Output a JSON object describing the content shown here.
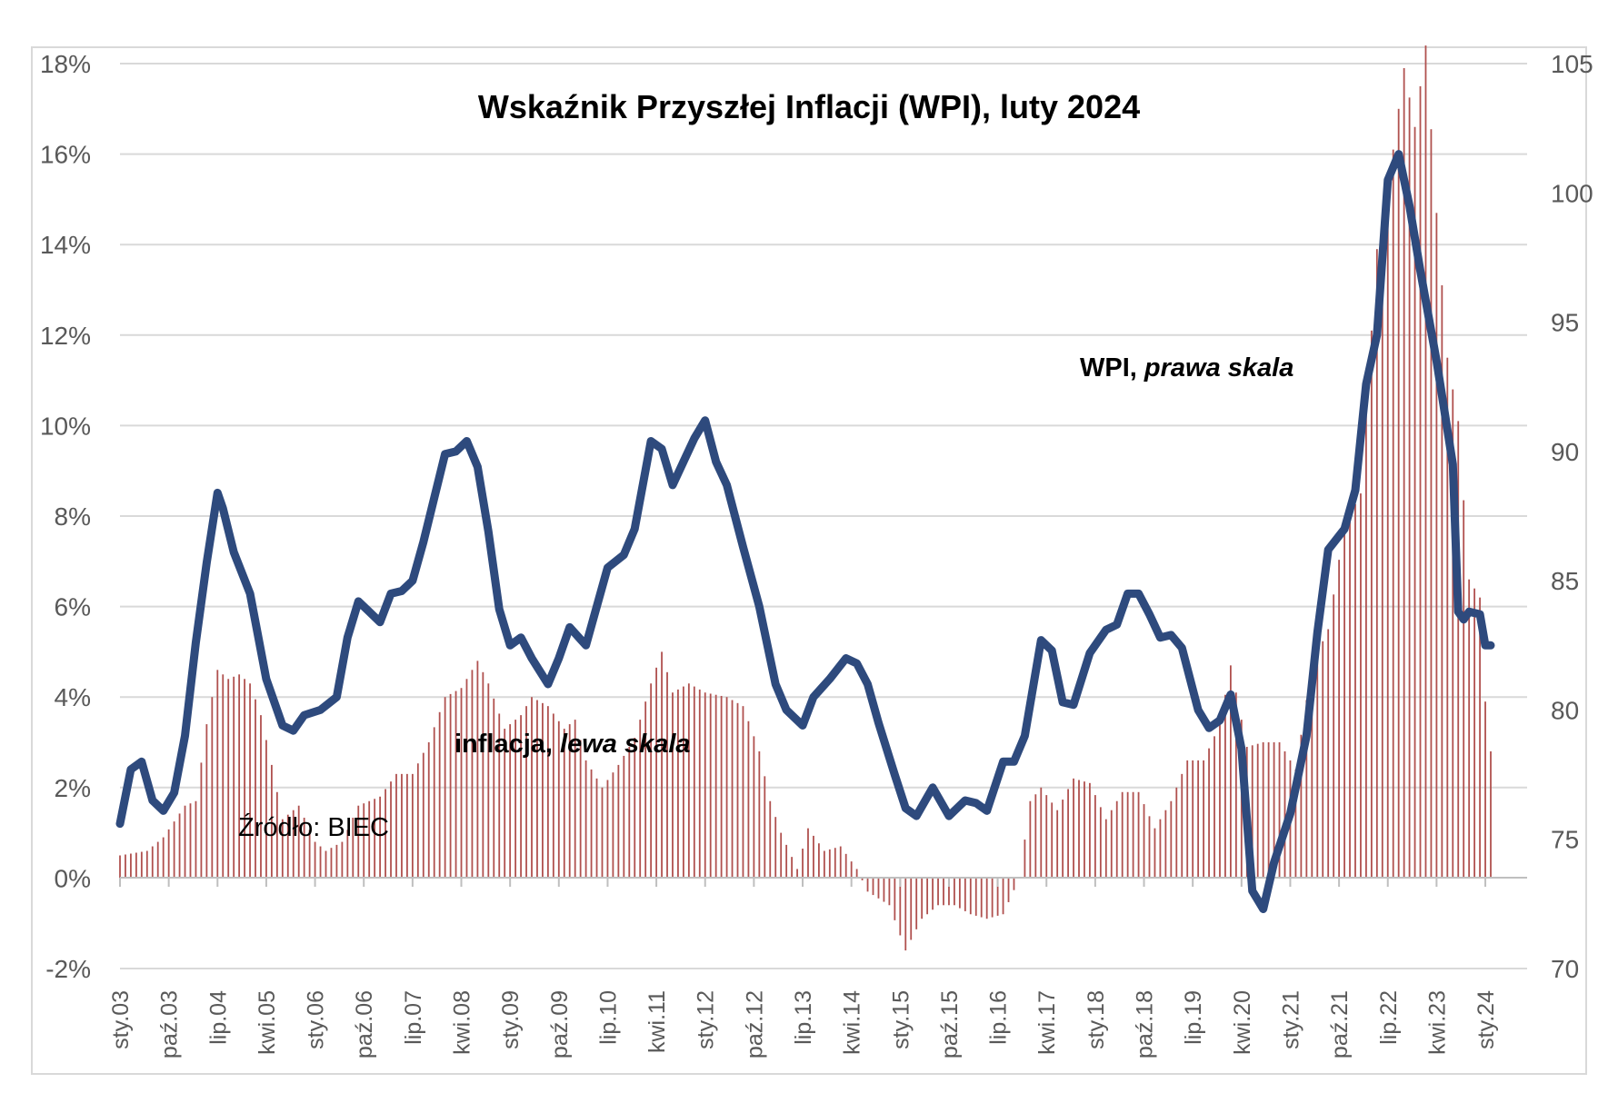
{
  "chart_data": {
    "type": "bar+line",
    "title": "Wskaźnik Przyszłej Inflacji (WPI), luty 2024",
    "annotations": {
      "wpi_label": "WPI, ",
      "wpi_label_italic": "prawa skala",
      "inflation_label": "inflacja, ",
      "inflation_label_italic": "lewa skala",
      "source": "Źródło: BIEC"
    },
    "left_axis": {
      "ticks": [
        "18%",
        "16%",
        "14%",
        "12%",
        "10%",
        "8%",
        "6%",
        "4%",
        "2%",
        "0%",
        "-2%"
      ],
      "range": [
        -2,
        18
      ]
    },
    "right_axis": {
      "ticks": [
        "105",
        "100",
        "95",
        "90",
        "85",
        "80",
        "75",
        "70"
      ],
      "range": [
        70,
        105
      ]
    },
    "x_ticks": [
      "sty.03",
      "paź.03",
      "lip.04",
      "kwi.05",
      "sty.06",
      "paź.06",
      "lip.07",
      "kwi.08",
      "sty.09",
      "paź.09",
      "lip.10",
      "kwi.11",
      "sty.12",
      "paź.12",
      "lip.13",
      "kwi.14",
      "sty.15",
      "paź.15",
      "lip.16",
      "kwi.17",
      "sty.18",
      "paź.18",
      "lip.19",
      "kwi.20",
      "sty.21",
      "paź.21",
      "lip.22",
      "kwi.23",
      "sty.24"
    ],
    "x_range": [
      "2003-01",
      "2024-02"
    ],
    "series": [
      {
        "name": "inflacja",
        "axis": "left",
        "kind": "bar",
        "color": "#b0514f",
        "anchors": [
          [
            "2003-01",
            0.5
          ],
          [
            "2003-06",
            0.6
          ],
          [
            "2003-09",
            0.9
          ],
          [
            "2004-01",
            1.6
          ],
          [
            "2004-03",
            1.7
          ],
          [
            "2004-05",
            3.4
          ],
          [
            "2004-07",
            4.6
          ],
          [
            "2004-09",
            4.4
          ],
          [
            "2004-11",
            4.5
          ],
          [
            "2005-01",
            4.3
          ],
          [
            "2005-03",
            3.6
          ],
          [
            "2005-05",
            2.5
          ],
          [
            "2005-07",
            1.3
          ],
          [
            "2005-10",
            1.6
          ],
          [
            "2006-01",
            0.8
          ],
          [
            "2006-03",
            0.6
          ],
          [
            "2006-06",
            0.8
          ],
          [
            "2006-09",
            1.6
          ],
          [
            "2007-01",
            1.8
          ],
          [
            "2007-04",
            2.3
          ],
          [
            "2007-07",
            2.3
          ],
          [
            "2007-10",
            3.0
          ],
          [
            "2008-01",
            4.0
          ],
          [
            "2008-04",
            4.2
          ],
          [
            "2008-07",
            4.8
          ],
          [
            "2008-09",
            4.3
          ],
          [
            "2008-12",
            3.3
          ],
          [
            "2009-03",
            3.6
          ],
          [
            "2009-05",
            4.0
          ],
          [
            "2009-08",
            3.8
          ],
          [
            "2009-11",
            3.3
          ],
          [
            "2010-01",
            3.5
          ],
          [
            "2010-03",
            2.6
          ],
          [
            "2010-06",
            2.0
          ],
          [
            "2010-09",
            2.5
          ],
          [
            "2010-12",
            3.1
          ],
          [
            "2011-03",
            4.3
          ],
          [
            "2011-05",
            5.0
          ],
          [
            "2011-07",
            4.1
          ],
          [
            "2011-10",
            4.3
          ],
          [
            "2012-01",
            4.1
          ],
          [
            "2012-05",
            4.0
          ],
          [
            "2012-08",
            3.8
          ],
          [
            "2012-11",
            2.8
          ],
          [
            "2013-01",
            1.7
          ],
          [
            "2013-03",
            1.0
          ],
          [
            "2013-06",
            0.2
          ],
          [
            "2013-08",
            1.1
          ],
          [
            "2013-11",
            0.6
          ],
          [
            "2014-02",
            0.7
          ],
          [
            "2014-05",
            0.2
          ],
          [
            "2014-07",
            -0.3
          ],
          [
            "2014-11",
            -0.6
          ],
          [
            "2015-02",
            -1.6
          ],
          [
            "2015-05",
            -0.9
          ],
          [
            "2015-08",
            -0.6
          ],
          [
            "2015-11",
            -0.6
          ],
          [
            "2016-02",
            -0.8
          ],
          [
            "2016-05",
            -0.9
          ],
          [
            "2016-08",
            -0.8
          ],
          [
            "2016-11",
            0.0
          ],
          [
            "2017-01",
            1.7
          ],
          [
            "2017-03",
            2.0
          ],
          [
            "2017-06",
            1.5
          ],
          [
            "2017-09",
            2.2
          ],
          [
            "2017-12",
            2.1
          ],
          [
            "2018-03",
            1.3
          ],
          [
            "2018-06",
            1.9
          ],
          [
            "2018-09",
            1.9
          ],
          [
            "2018-12",
            1.1
          ],
          [
            "2019-03",
            1.7
          ],
          [
            "2019-06",
            2.6
          ],
          [
            "2019-09",
            2.6
          ],
          [
            "2019-12",
            3.4
          ],
          [
            "2020-02",
            4.7
          ],
          [
            "2020-05",
            2.9
          ],
          [
            "2020-08",
            3.0
          ],
          [
            "2020-11",
            3.0
          ],
          [
            "2021-02",
            2.4
          ],
          [
            "2021-05",
            4.7
          ],
          [
            "2021-08",
            5.5
          ],
          [
            "2021-11",
            7.8
          ],
          [
            "2022-02",
            8.5
          ],
          [
            "2022-05",
            13.9
          ],
          [
            "2022-08",
            16.1
          ],
          [
            "2022-10",
            17.9
          ],
          [
            "2022-12",
            16.6
          ],
          [
            "2023-02",
            18.4
          ],
          [
            "2023-04",
            14.7
          ],
          [
            "2023-06",
            11.5
          ],
          [
            "2023-08",
            10.1
          ],
          [
            "2023-10",
            6.6
          ],
          [
            "2023-12",
            6.2
          ],
          [
            "2024-01",
            3.9
          ],
          [
            "2024-02",
            2.8
          ]
        ]
      },
      {
        "name": "WPI",
        "axis": "right",
        "kind": "line",
        "color": "#2e4a7d",
        "points": [
          [
            "2003-01",
            75.6
          ],
          [
            "2003-03",
            77.7
          ],
          [
            "2003-05",
            78.0
          ],
          [
            "2003-07",
            76.5
          ],
          [
            "2003-09",
            76.1
          ],
          [
            "2003-11",
            76.8
          ],
          [
            "2004-01",
            79.0
          ],
          [
            "2004-03",
            82.6
          ],
          [
            "2004-05",
            85.7
          ],
          [
            "2004-07",
            88.4
          ],
          [
            "2004-08",
            87.8
          ],
          [
            "2004-10",
            86.1
          ],
          [
            "2005-01",
            84.5
          ],
          [
            "2005-04",
            81.2
          ],
          [
            "2005-07",
            79.4
          ],
          [
            "2005-09",
            79.2
          ],
          [
            "2005-11",
            79.8
          ],
          [
            "2006-02",
            80.0
          ],
          [
            "2006-05",
            80.5
          ],
          [
            "2006-07",
            82.8
          ],
          [
            "2006-09",
            84.2
          ],
          [
            "2006-11",
            83.8
          ],
          [
            "2007-01",
            83.4
          ],
          [
            "2007-03",
            84.5
          ],
          [
            "2007-05",
            84.6
          ],
          [
            "2007-07",
            85.0
          ],
          [
            "2007-09",
            86.5
          ],
          [
            "2007-11",
            88.2
          ],
          [
            "2008-01",
            89.9
          ],
          [
            "2008-03",
            90.0
          ],
          [
            "2008-05",
            90.4
          ],
          [
            "2008-07",
            89.4
          ],
          [
            "2008-09",
            86.9
          ],
          [
            "2008-11",
            83.9
          ],
          [
            "2009-01",
            82.5
          ],
          [
            "2009-03",
            82.8
          ],
          [
            "2009-05",
            82.0
          ],
          [
            "2009-08",
            81.0
          ],
          [
            "2009-10",
            82.0
          ],
          [
            "2009-12",
            83.2
          ],
          [
            "2010-03",
            82.5
          ],
          [
            "2010-05",
            84.0
          ],
          [
            "2010-07",
            85.5
          ],
          [
            "2010-10",
            86.0
          ],
          [
            "2010-12",
            87.0
          ],
          [
            "2011-03",
            90.4
          ],
          [
            "2011-05",
            90.1
          ],
          [
            "2011-07",
            88.7
          ],
          [
            "2011-09",
            89.6
          ],
          [
            "2011-11",
            90.5
          ],
          [
            "2012-01",
            91.2
          ],
          [
            "2012-03",
            89.6
          ],
          [
            "2012-05",
            88.7
          ],
          [
            "2012-08",
            86.3
          ],
          [
            "2012-11",
            84.0
          ],
          [
            "2013-02",
            81.0
          ],
          [
            "2013-04",
            80.0
          ],
          [
            "2013-07",
            79.4
          ],
          [
            "2013-09",
            80.5
          ],
          [
            "2013-12",
            81.2
          ],
          [
            "2014-03",
            82.0
          ],
          [
            "2014-05",
            81.8
          ],
          [
            "2014-07",
            81.0
          ],
          [
            "2014-09",
            79.5
          ],
          [
            "2014-12",
            77.5
          ],
          [
            "2015-02",
            76.2
          ],
          [
            "2015-04",
            75.9
          ],
          [
            "2015-07",
            77.0
          ],
          [
            "2015-10",
            75.9
          ],
          [
            "2016-01",
            76.5
          ],
          [
            "2016-03",
            76.4
          ],
          [
            "2016-05",
            76.1
          ],
          [
            "2016-08",
            78.0
          ],
          [
            "2016-10",
            78.0
          ],
          [
            "2016-12",
            79.0
          ],
          [
            "2017-03",
            82.7
          ],
          [
            "2017-05",
            82.3
          ],
          [
            "2017-07",
            80.3
          ],
          [
            "2017-09",
            80.2
          ],
          [
            "2017-12",
            82.2
          ],
          [
            "2018-03",
            83.1
          ],
          [
            "2018-05",
            83.3
          ],
          [
            "2018-07",
            84.5
          ],
          [
            "2018-09",
            84.5
          ],
          [
            "2018-11",
            83.7
          ],
          [
            "2019-01",
            82.8
          ],
          [
            "2019-03",
            82.9
          ],
          [
            "2019-05",
            82.4
          ],
          [
            "2019-08",
            80.0
          ],
          [
            "2019-10",
            79.3
          ],
          [
            "2019-12",
            79.6
          ],
          [
            "2020-02",
            80.6
          ],
          [
            "2020-04",
            78.5
          ],
          [
            "2020-06",
            73.0
          ],
          [
            "2020-08",
            72.3
          ],
          [
            "2020-10",
            74.1
          ],
          [
            "2021-01",
            76.0
          ],
          [
            "2021-04",
            79.0
          ],
          [
            "2021-06",
            83.0
          ],
          [
            "2021-08",
            86.2
          ],
          [
            "2021-11",
            87.0
          ],
          [
            "2022-01",
            88.5
          ],
          [
            "2022-03",
            92.6
          ],
          [
            "2022-05",
            94.5
          ],
          [
            "2022-07",
            100.5
          ],
          [
            "2022-09",
            101.5
          ],
          [
            "2022-11",
            99.5
          ],
          [
            "2023-01",
            97.0
          ],
          [
            "2023-04",
            93.5
          ],
          [
            "2023-07",
            89.5
          ],
          [
            "2023-08",
            83.8
          ],
          [
            "2023-09",
            83.5
          ],
          [
            "2023-10",
            83.8
          ],
          [
            "2023-12",
            83.7
          ],
          [
            "2024-01",
            82.5
          ],
          [
            "2024-02",
            82.5
          ]
        ]
      }
    ]
  }
}
